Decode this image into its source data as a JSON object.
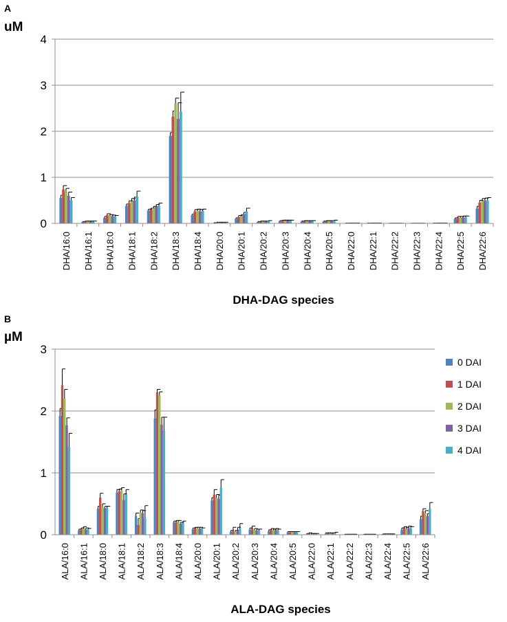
{
  "chart_data": [
    {
      "type": "bar",
      "panel": "A",
      "unit": "uM",
      "xlabel": "DHA-DAG species",
      "ylim": [
        0,
        4
      ],
      "yticks": [
        "0",
        "1",
        "2",
        "3",
        "4"
      ],
      "grid": true,
      "categories": [
        "DHA/16:0",
        "DHA/16:1",
        "DHA/18:0",
        "DHA/18:1",
        "DHA/18:2",
        "DHA/18:3",
        "DHA/18:4",
        "DHA/20:0",
        "DHA/20:1",
        "DHA/20:2",
        "DHA/20:3",
        "DHA/20:4",
        "DHA/20:5",
        "DHA/22:0",
        "DHA/22:1",
        "DHA/22:2",
        "DHA/22:3",
        "DHA/22:4",
        "DHA/22:5",
        "DHA/22:6"
      ],
      "series": [
        {
          "name": "0 DAI",
          "color": "#4F81BD",
          "values": [
            0.55,
            0.03,
            0.12,
            0.38,
            0.28,
            1.9,
            0.18,
            0.01,
            0.1,
            0.03,
            0.05,
            0.04,
            0.04,
            0.005,
            0.005,
            0.003,
            0.003,
            0.005,
            0.1,
            0.32
          ],
          "errors": [
            0.06,
            0.01,
            0.03,
            0.04,
            0.03,
            0.07,
            0.02,
            0.005,
            0.02,
            0.01,
            0.01,
            0.01,
            0.01,
            0.002,
            0.002,
            0.001,
            0.001,
            0.002,
            0.02,
            0.05
          ]
        },
        {
          "name": "1 DAI",
          "color": "#C0504D",
          "values": [
            0.74,
            0.04,
            0.18,
            0.44,
            0.3,
            2.32,
            0.26,
            0.02,
            0.14,
            0.04,
            0.06,
            0.05,
            0.05,
            0.006,
            0.006,
            0.003,
            0.003,
            0.006,
            0.12,
            0.45
          ],
          "errors": [
            0.08,
            0.01,
            0.03,
            0.05,
            0.03,
            0.12,
            0.04,
            0.005,
            0.03,
            0.01,
            0.01,
            0.01,
            0.01,
            0.002,
            0.002,
            0.001,
            0.001,
            0.002,
            0.03,
            0.05
          ]
        },
        {
          "name": "2 DAI",
          "color": "#9BBB59",
          "values": [
            0.68,
            0.04,
            0.17,
            0.48,
            0.33,
            2.6,
            0.27,
            0.02,
            0.16,
            0.04,
            0.06,
            0.05,
            0.05,
            0.006,
            0.006,
            0.003,
            0.003,
            0.006,
            0.12,
            0.48
          ],
          "errors": [
            0.08,
            0.01,
            0.02,
            0.06,
            0.04,
            0.12,
            0.04,
            0.005,
            0.03,
            0.01,
            0.01,
            0.01,
            0.01,
            0.002,
            0.002,
            0.001,
            0.001,
            0.002,
            0.03,
            0.06
          ]
        },
        {
          "name": "3 DAI",
          "color": "#8064A2",
          "values": [
            0.6,
            0.04,
            0.16,
            0.5,
            0.36,
            2.27,
            0.26,
            0.02,
            0.2,
            0.04,
            0.06,
            0.05,
            0.05,
            0.006,
            0.006,
            0.003,
            0.003,
            0.006,
            0.13,
            0.5
          ],
          "errors": [
            0.08,
            0.01,
            0.02,
            0.07,
            0.05,
            0.35,
            0.04,
            0.005,
            0.04,
            0.01,
            0.01,
            0.01,
            0.01,
            0.002,
            0.002,
            0.001,
            0.001,
            0.002,
            0.03,
            0.05
          ]
        },
        {
          "name": "4 DAI",
          "color": "#4BACC6",
          "values": [
            0.5,
            0.04,
            0.15,
            0.58,
            0.38,
            2.43,
            0.27,
            0.02,
            0.26,
            0.05,
            0.06,
            0.05,
            0.06,
            0.006,
            0.006,
            0.003,
            0.003,
            0.006,
            0.13,
            0.5
          ],
          "errors": [
            0.06,
            0.01,
            0.02,
            0.12,
            0.06,
            0.42,
            0.04,
            0.005,
            0.07,
            0.01,
            0.01,
            0.01,
            0.01,
            0.002,
            0.002,
            0.001,
            0.001,
            0.002,
            0.03,
            0.06
          ]
        }
      ]
    },
    {
      "type": "bar",
      "panel": "B",
      "unit": "µM",
      "xlabel": "ALA-DAG species",
      "ylim": [
        0,
        3
      ],
      "yticks": [
        "0",
        "1",
        "2",
        "3"
      ],
      "grid": true,
      "legend_position": "right",
      "categories": [
        "ALA/16:0",
        "ALA/16:1",
        "ALA/18:0",
        "ALA/18:1",
        "ALA/18:2",
        "ALA/18:3",
        "ALA/18:4",
        "ALA/20:0",
        "ALA/20:1",
        "ALA/20:2",
        "ALA/20:3",
        "ALA/20:4",
        "ALA/20:5",
        "ALA/22:0",
        "ALA/22:1",
        "ALA/22:2",
        "ALA/22:3",
        "ALA/22:4",
        "ALA/22:5",
        "ALA/22:6"
      ],
      "series": [
        {
          "name": "0 DAI",
          "color": "#4F81BD",
          "values": [
            1.92,
            0.07,
            0.42,
            0.68,
            0.3,
            1.88,
            0.2,
            0.09,
            0.55,
            0.05,
            0.08,
            0.06,
            0.04,
            0.01,
            0.02,
            0.005,
            0.005,
            0.01,
            0.08,
            0.25
          ],
          "errors": [
            0.12,
            0.02,
            0.04,
            0.05,
            0.05,
            0.14,
            0.02,
            0.02,
            0.05,
            0.02,
            0.03,
            0.02,
            0.01,
            0.01,
            0.01,
            0.003,
            0.003,
            0.003,
            0.03,
            0.05
          ]
        },
        {
          "name": "1 DAI",
          "color": "#C0504D",
          "values": [
            2.42,
            0.09,
            0.6,
            0.7,
            0.16,
            2.3,
            0.2,
            0.1,
            0.65,
            0.07,
            0.1,
            0.08,
            0.04,
            0.02,
            0.02,
            0.005,
            0.005,
            0.01,
            0.1,
            0.38
          ],
          "errors": [
            0.26,
            0.02,
            0.07,
            0.04,
            0.1,
            0.05,
            0.03,
            0.02,
            0.08,
            0.05,
            0.04,
            0.02,
            0.01,
            0.01,
            0.01,
            0.003,
            0.003,
            0.003,
            0.03,
            0.04
          ]
        },
        {
          "name": "2 DAI",
          "color": "#9BBB59",
          "values": [
            2.2,
            0.1,
            0.45,
            0.72,
            0.36,
            2.25,
            0.21,
            0.1,
            0.6,
            0.05,
            0.08,
            0.07,
            0.04,
            0.01,
            0.02,
            0.005,
            0.005,
            0.01,
            0.09,
            0.35
          ],
          "errors": [
            0.15,
            0.03,
            0.05,
            0.04,
            0.04,
            0.06,
            0.02,
            0.02,
            0.05,
            0.02,
            0.02,
            0.02,
            0.01,
            0.01,
            0.01,
            0.003,
            0.003,
            0.003,
            0.03,
            0.04
          ]
        },
        {
          "name": "3 DAI",
          "color": "#8064A2",
          "values": [
            1.77,
            0.09,
            0.43,
            0.56,
            0.35,
            1.78,
            0.18,
            0.1,
            0.58,
            0.07,
            0.07,
            0.08,
            0.04,
            0.01,
            0.02,
            0.005,
            0.005,
            0.01,
            0.11,
            0.3
          ],
          "errors": [
            0.12,
            0.02,
            0.03,
            0.1,
            0.04,
            0.12,
            0.02,
            0.02,
            0.06,
            0.05,
            0.02,
            0.02,
            0.01,
            0.01,
            0.01,
            0.003,
            0.003,
            0.003,
            0.03,
            0.04
          ]
        },
        {
          "name": "4 DAI",
          "color": "#4BACC6",
          "values": [
            1.42,
            0.08,
            0.43,
            0.65,
            0.27,
            1.68,
            0.19,
            0.09,
            0.76,
            0.1,
            0.07,
            0.07,
            0.04,
            0.01,
            0.03,
            0.005,
            0.005,
            0.01,
            0.1,
            0.42
          ],
          "errors": [
            0.22,
            0.02,
            0.03,
            0.08,
            0.2,
            0.22,
            0.03,
            0.02,
            0.13,
            0.08,
            0.02,
            0.02,
            0.01,
            0.01,
            0.01,
            0.003,
            0.003,
            0.003,
            0.03,
            0.1
          ]
        }
      ]
    }
  ]
}
